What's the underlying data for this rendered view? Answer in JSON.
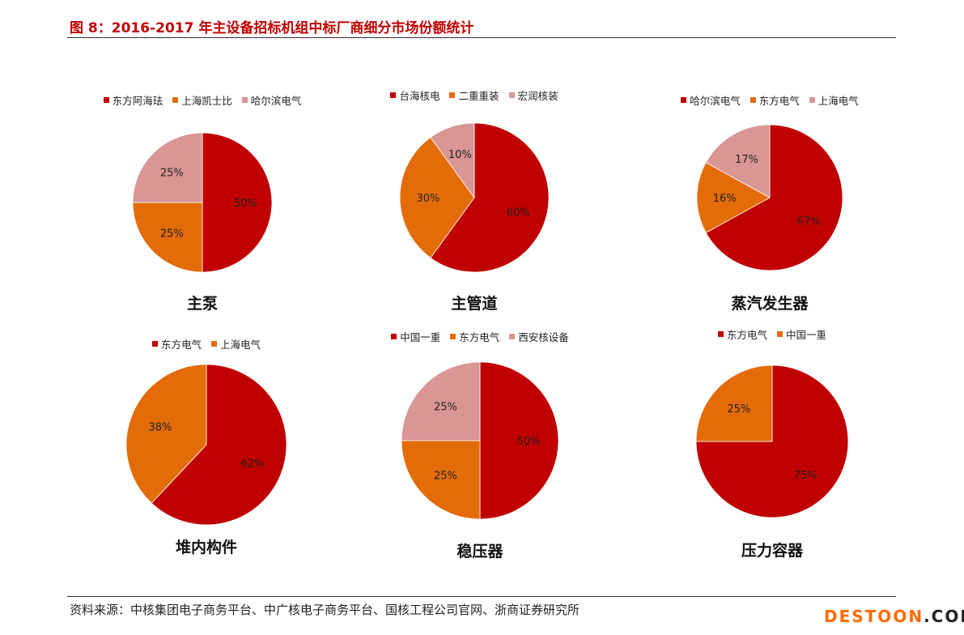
{
  "figure_title": "图 8：2016-2017 年主设备招标机组中标厂商细分市场份额统计",
  "source_text": "资料来源：中核集团电子商务平台、中广核电子商务平台、国核工程公司官网、浙商证券研究所",
  "watermark": {
    "part1": "DESTOON",
    "part2": ".COM"
  },
  "colors": {
    "series1": "#c00000",
    "series2": "#e36c09",
    "series3": "#d99694",
    "title_red": "#c00000"
  },
  "chart_data": [
    {
      "type": "pie",
      "title": "主泵",
      "labels": [
        "东方阿海珐",
        "上海凯士比",
        "哈尔滨电气"
      ],
      "values": [
        50,
        25,
        25
      ],
      "value_labels": [
        "50%",
        "25%",
        "25%"
      ],
      "legend_position": "top"
    },
    {
      "type": "pie",
      "title": "主管道",
      "labels": [
        "台海核电",
        "二重重装",
        "宏润核装"
      ],
      "values": [
        60,
        30,
        10
      ],
      "value_labels": [
        "60%",
        "30%",
        "10%"
      ],
      "legend_position": "top"
    },
    {
      "type": "pie",
      "title": "蒸汽发生器",
      "labels": [
        "哈尔滨电气",
        "东方电气",
        "上海电气"
      ],
      "values": [
        67,
        16,
        17
      ],
      "value_labels": [
        "67%",
        "16%",
        "17%"
      ],
      "legend_position": "top"
    },
    {
      "type": "pie",
      "title": "堆内构件",
      "labels": [
        "东方电气",
        "上海电气"
      ],
      "values": [
        62,
        38
      ],
      "value_labels": [
        "62%",
        "38%"
      ],
      "legend_position": "top"
    },
    {
      "type": "pie",
      "title": "稳压器",
      "labels": [
        "中国一重",
        "东方电气",
        "西安核设备"
      ],
      "values": [
        50,
        25,
        25
      ],
      "value_labels": [
        "50%",
        "25%",
        "25%"
      ],
      "legend_position": "top"
    },
    {
      "type": "pie",
      "title": "压力容器",
      "labels": [
        "东方电气",
        "中国一重"
      ],
      "values": [
        75,
        25
      ],
      "value_labels": [
        "75%",
        "25%"
      ],
      "legend_position": "top"
    }
  ]
}
